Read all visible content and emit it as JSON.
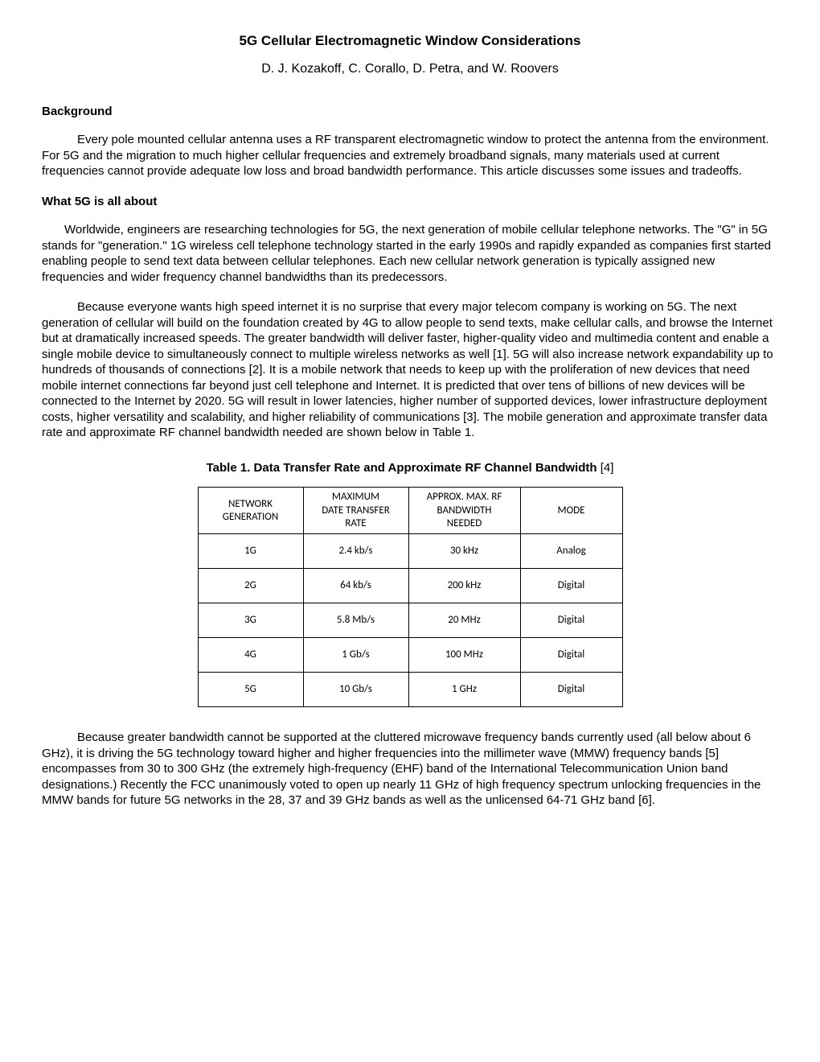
{
  "title": "5G Cellular Electromagnetic Window Considerations",
  "authors": "D. J. Kozakoff, C. Corallo, D. Petra, and W. Roovers",
  "sections": {
    "background": {
      "heading": "Background",
      "p1": "Every pole mounted cellular antenna uses a RF transparent electromagnetic window to protect the antenna from the environment. For 5G and the migration to much higher cellular frequencies and extremely broadband signals, many materials used at current frequencies cannot provide adequate low loss and broad bandwidth performance. This article discusses some issues and tradeoffs."
    },
    "what5g": {
      "heading": "What 5G is all about",
      "p1": "Worldwide, engineers are researching technologies for 5G, the next generation of mobile cellular telephone networks. The \"G\" in 5G stands for \"generation.\" 1G wireless cell telephone technology started in the early 1990s and rapidly expanded as companies first started enabling people to send text data between cellular telephones.  Each new cellular network generation is typically assigned new frequencies and wider frequency channel bandwidths than its predecessors.",
      "p2": "Because everyone wants high speed internet it is no surprise that every major telecom company is working on 5G. The next generation of cellular will build on the foundation created by 4G to allow people to send texts, make cellular calls, and browse the Internet but at dramatically increased speeds. The greater bandwidth will deliver faster, higher-quality video and multimedia content and enable a single mobile device to simultaneously connect to multiple wireless networks as well [1].  5G will also increase network expandability up to hundreds of thousands of connections [2].  It is a mobile network that needs to keep up with the proliferation of new devices that need mobile internet connections far beyond just cell telephone and Internet. It is predicted that over tens of billions of new devices will be connected to the Internet by 2020. 5G will result in lower latencies, higher number of supported devices, lower infrastructure deployment costs, higher versatility and scalability, and higher reliability of communications [3].  The mobile generation and approximate transfer data rate and approximate RF channel bandwidth needed are shown below in Table 1."
    },
    "closing": {
      "p1": "Because greater bandwidth cannot be supported at the cluttered microwave frequency bands currently used (all below about 6 GHz), it is driving the 5G technology toward higher and higher frequencies into the millimeter wave (MMW) frequency bands [5] encompasses from 30 to 300 GHz (the extremely high-frequency (EHF) band of the International Telecommunication Union band designations.)  Recently the FCC unanimously voted to open up nearly 11 GHz of high frequency spectrum unlocking frequencies in the MMW bands for future 5G networks in the 28, 37 and 39 GHz bands as well as the unlicensed 64-71 GHz band [6]."
    }
  },
  "table": {
    "caption_bold": "Table 1.  Data Transfer Rate and Approximate RF Channel Bandwidth ",
    "caption_ref": "[4]",
    "columns": [
      "NETWORK\nGENERATION",
      "MAXIMUM\nDATE TRANSFER\nRATE",
      "APPROX. MAX. RF\nBANDWIDTH\nNEEDED",
      "MODE"
    ],
    "col_widths": [
      "110px",
      "110px",
      "118px",
      "106px"
    ],
    "rows": [
      [
        "1G",
        "2.4 kb/s",
        "30 kHz",
        "Analog"
      ],
      [
        "2G",
        "64 kb/s",
        "200 kHz",
        "Digital"
      ],
      [
        "3G",
        "5.8 Mb/s",
        "20 MHz",
        "Digital"
      ],
      [
        "4G",
        "1 Gb/s",
        "100 MHz",
        "Digital"
      ],
      [
        "5G",
        "10 Gb/s",
        "1 GHz",
        "Digital"
      ]
    ]
  }
}
